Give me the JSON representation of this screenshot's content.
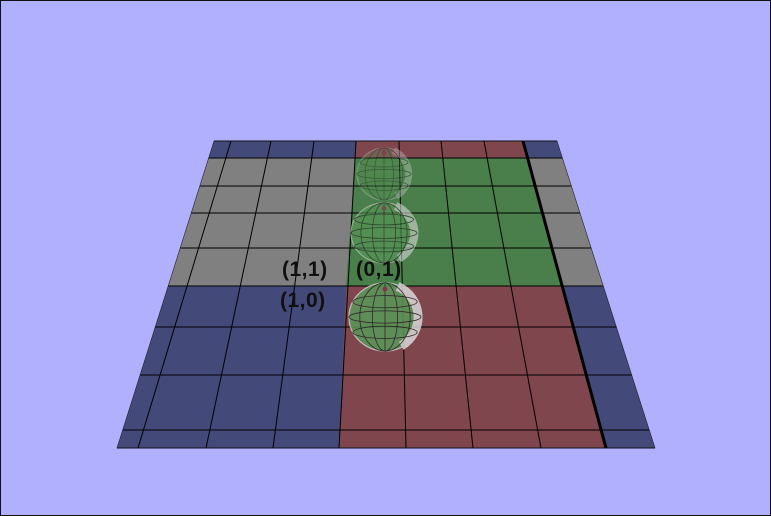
{
  "scene": {
    "background_color": "#b0b0ff",
    "grid_line_color": "#000000",
    "floor_colors": {
      "gray": "#808080",
      "blue": "#434a7a",
      "green": "#4a7e4a",
      "red": "#7f464e"
    }
  },
  "labels": {
    "top_left": "(1,1)",
    "top_right": "(0,1)",
    "bottom_left": "(1,0)"
  },
  "spheres": [
    {
      "name": "far",
      "opacity": 0.35
    },
    {
      "name": "middle",
      "opacity": 0.6
    },
    {
      "name": "near",
      "opacity": 0.85
    }
  ]
}
